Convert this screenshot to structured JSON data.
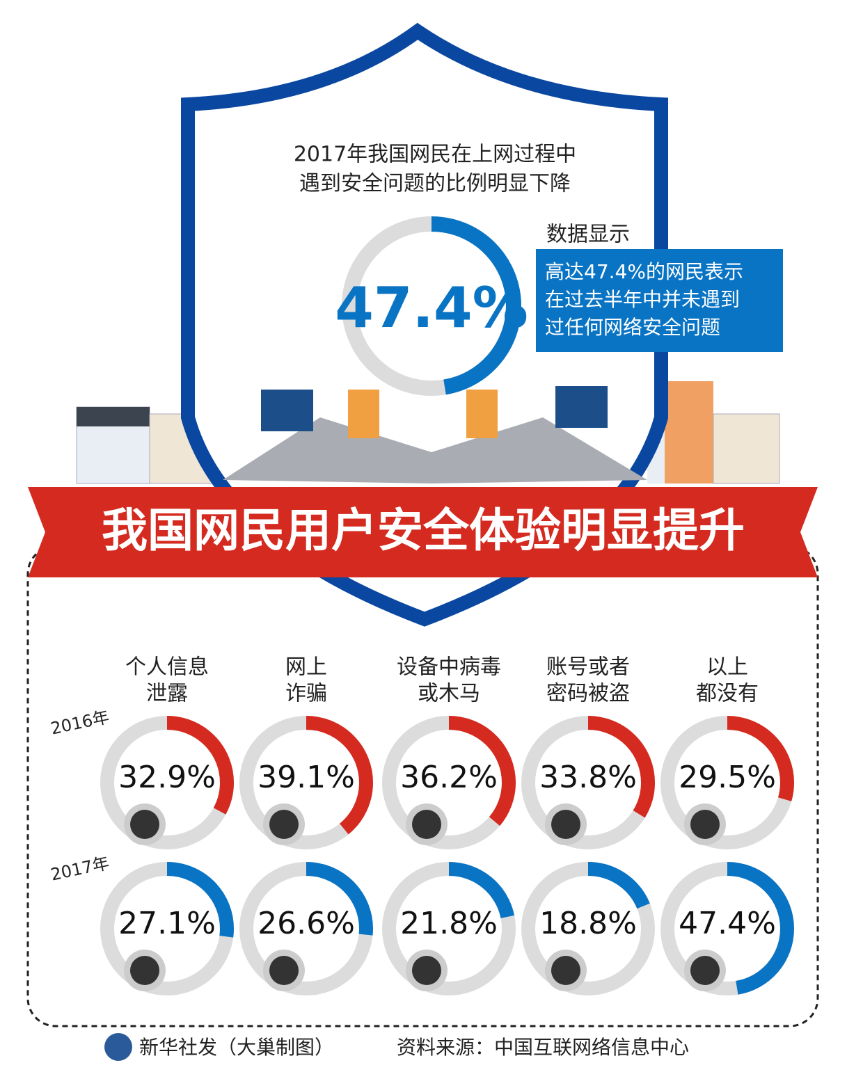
{
  "header": {
    "subtitle": [
      "2017年我国网民在上网过程中",
      "遇到安全问题的比例明显下降"
    ],
    "note_title": "数据显示",
    "note": [
      "高达47.4%的网民表示",
      "在过去半年中并未遇到",
      "过任何网络安全问题"
    ]
  },
  "banner": "我国网民用户安全体验明显提升",
  "chart_data": [
    {
      "type": "gauge",
      "value": 47.4,
      "value_label": "47.4%",
      "color": "#0a74c4",
      "ylim": [
        0,
        100
      ]
    },
    {
      "type": "gauge-grid",
      "ylim": [
        0,
        100
      ],
      "categories": [
        [
          "个人信息",
          "泄露"
        ],
        [
          "网上",
          "诈骗"
        ],
        [
          "设备中病毒",
          "或木马"
        ],
        [
          "账号或者",
          "密码被盗"
        ],
        [
          "以上",
          "都没有"
        ]
      ],
      "series": [
        {
          "name": "2016年",
          "color": "#d42a1f",
          "values": [
            32.9,
            39.1,
            36.2,
            33.8,
            29.5
          ],
          "value_labels": [
            "32.9%",
            "39.1%",
            "36.2%",
            "33.8%",
            "29.5%"
          ]
        },
        {
          "name": "2017年",
          "color": "#0a74c4",
          "values": [
            27.1,
            26.6,
            21.8,
            18.8,
            47.4
          ],
          "value_labels": [
            "27.1%",
            "26.6%",
            "21.8%",
            "18.8%",
            "47.4%"
          ]
        }
      ]
    }
  ],
  "footer": {
    "credit": "新华社发（大巢制图）",
    "source": "资料来源：中国互联网络信息中心"
  }
}
